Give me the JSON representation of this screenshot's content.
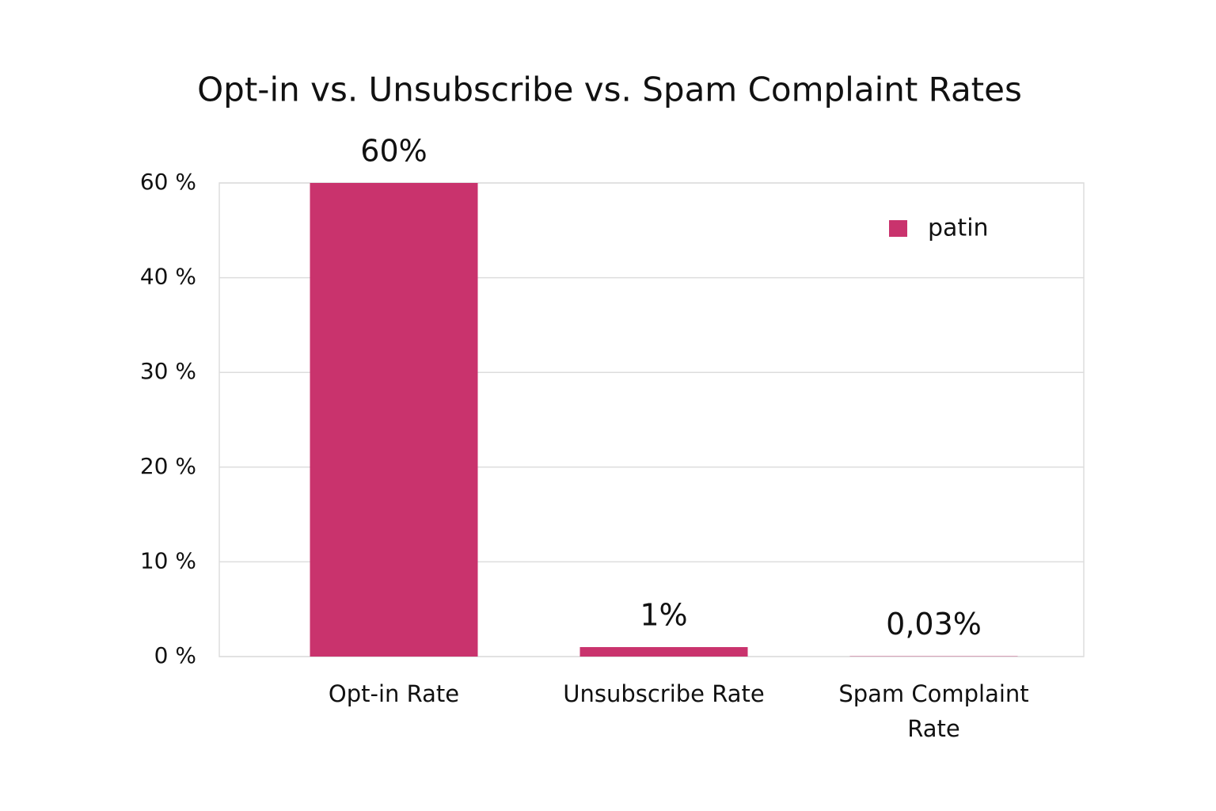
{
  "chart_data": {
    "type": "bar",
    "title": "Opt-in vs. Unsubscribe vs. Spam Complaint Rates",
    "categories": [
      "Opt-in Rate",
      "Unsubscribe Rate",
      "Spam Complaint Rate"
    ],
    "series": [
      {
        "name": "patin",
        "color": "#c9336d",
        "values": [
          60,
          1,
          0.03
        ],
        "value_labels": [
          "60%",
          "1%",
          "0,03%"
        ]
      }
    ],
    "ylim": [
      0,
      60
    ],
    "yticks": [
      {
        "value": 0,
        "label": "0 %"
      },
      {
        "value": 10,
        "label": "10 %"
      },
      {
        "value": 20,
        "label": "20 %"
      },
      {
        "value": 30,
        "label": "30 %"
      },
      {
        "value": 40,
        "label": "40 %"
      },
      {
        "value": 60,
        "label": "60 %"
      }
    ],
    "grid": true,
    "legend": "top-right"
  }
}
